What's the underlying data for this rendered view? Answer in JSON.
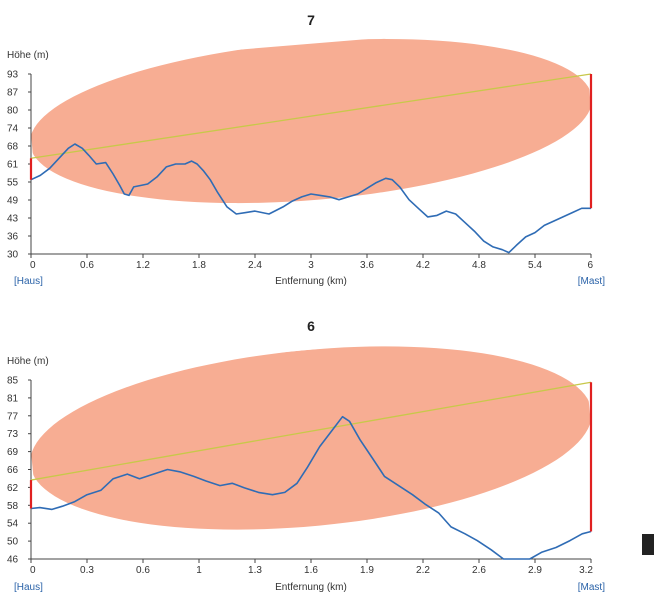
{
  "charts": [
    {
      "title": "7",
      "ylabel": "Höhe (m)",
      "xlabel": "Entfernung (km)",
      "start_label": "[Haus]",
      "end_label": "[Mast]",
      "x_ticks": [
        "0",
        "0.6",
        "1.2",
        "1.8",
        "2.4",
        "3",
        "3.6",
        "4.2",
        "4.8",
        "5.4",
        "6"
      ],
      "y_ticks": [
        "30",
        "36",
        "43",
        "49",
        "55",
        "61",
        "68",
        "74",
        "80",
        "87",
        "93"
      ]
    },
    {
      "title": "6",
      "ylabel": "Höhe (m)",
      "xlabel": "Entfernung (km)",
      "start_label": "[Haus]",
      "end_label": "[Mast]",
      "x_ticks": [
        "0",
        "0.3",
        "0.6",
        "1",
        "1.3",
        "1.6",
        "1.9",
        "2.2",
        "2.6",
        "2.9",
        "3.2"
      ],
      "y_ticks": [
        "46",
        "50",
        "54",
        "58",
        "62",
        "66",
        "69",
        "73",
        "77",
        "81",
        "85"
      ]
    }
  ],
  "chart_data": [
    {
      "type": "line",
      "title": "7",
      "xlabel": "Entfernung (km)",
      "ylabel": "Höhe (m)",
      "xlim": [
        0,
        6
      ],
      "ylim": [
        30,
        93
      ],
      "series": [
        {
          "x": [
            0,
            0.1,
            0.2,
            0.3,
            0.4,
            0.47,
            0.55,
            0.62,
            0.7,
            0.8,
            0.88,
            0.95,
            1.0,
            1.05,
            1.1,
            1.18,
            1.25,
            1.35,
            1.45,
            1.55,
            1.65,
            1.72,
            1.78,
            1.85,
            1.92,
            2.0,
            2.1,
            2.2,
            2.3,
            2.4,
            2.55,
            2.7,
            2.8,
            2.9,
            3.0,
            3.1,
            3.2,
            3.3,
            3.4,
            3.5,
            3.6,
            3.7,
            3.8,
            3.87,
            3.95,
            4.05,
            4.15,
            4.25,
            4.35,
            4.45,
            4.55,
            4.65,
            4.75,
            4.85,
            4.95,
            5.05,
            5.12,
            5.2,
            5.3,
            5.4,
            5.5,
            5.6,
            5.7,
            5.8,
            5.9,
            6.0
          ],
          "y": [
            56,
            57.5,
            60,
            63.5,
            67,
            68.5,
            67,
            64.5,
            61.5,
            62,
            58,
            54,
            51,
            50.5,
            53.5,
            54,
            54.5,
            57,
            60.5,
            61.5,
            61.5,
            62.5,
            61.5,
            59,
            56,
            51.5,
            46.5,
            44,
            44.5,
            45,
            44,
            46.5,
            48.5,
            50,
            51,
            50.5,
            50,
            49,
            50,
            51,
            53,
            55,
            56.5,
            56,
            53.5,
            49,
            46,
            43,
            43.5,
            45,
            44,
            41,
            38,
            34.5,
            32.5,
            31.5,
            30.5,
            33,
            36,
            37.5,
            40,
            41.5,
            43,
            44.5,
            46,
            46
          ]
        },
        {
          "x": [
            0,
            6
          ],
          "y": [
            63.5,
            93
          ]
        }
      ]
    },
    {
      "type": "line",
      "title": "6",
      "xlabel": "Entfernung (km)",
      "ylabel": "Höhe (m)",
      "xlim": [
        0,
        3.2
      ],
      "ylim": [
        46,
        85
      ],
      "series": [
        {
          "x": [
            0,
            0.05,
            0.12,
            0.18,
            0.25,
            0.32,
            0.4,
            0.47,
            0.55,
            0.62,
            0.7,
            0.78,
            0.85,
            0.93,
            1.0,
            1.08,
            1.15,
            1.22,
            1.3,
            1.38,
            1.45,
            1.52,
            1.58,
            1.65,
            1.72,
            1.78,
            1.82,
            1.88,
            1.95,
            2.02,
            2.1,
            2.18,
            2.25,
            2.33,
            2.4,
            2.48,
            2.55,
            2.63,
            2.7,
            2.78,
            2.85,
            2.92,
            3.0,
            3.08,
            3.15,
            3.2
          ],
          "y": [
            57,
            57.2,
            56.8,
            57.5,
            58.5,
            60,
            61,
            63.5,
            64.5,
            63.5,
            64.5,
            65.5,
            65,
            64,
            63,
            62,
            62.5,
            61.5,
            60.5,
            60,
            60.5,
            62.5,
            66,
            70.5,
            74,
            77,
            76,
            72,
            68,
            64,
            62,
            60,
            58,
            56,
            53,
            51.5,
            50,
            48,
            46,
            46,
            46,
            47.5,
            48.5,
            50,
            51.5,
            52
          ]
        },
        {
          "x": [
            0,
            3.2
          ],
          "y": [
            63.2,
            84.5
          ]
        }
      ]
    }
  ],
  "colors": {
    "profile": "#2f6cb5",
    "line_of_sight": "#c8c84a",
    "fresnel": "#f7ad93",
    "antenna": "#e02020",
    "label_blue": "#2a62a8"
  }
}
